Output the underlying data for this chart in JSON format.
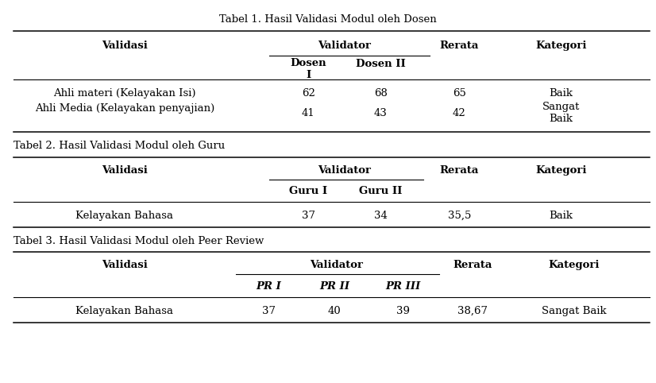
{
  "table1": {
    "title": "Tabel 1. Hasil Validasi Modul oleh Dosen",
    "rows": [
      [
        "Ahli materi (Kelayakan Isi)",
        "62",
        "68",
        "65",
        "Baik"
      ],
      [
        "Ahli Media (Kelayakan penyajian)",
        "41",
        "43",
        "42",
        "Sangat\nBaik"
      ]
    ]
  },
  "table2": {
    "title": "Tabel 2. Hasil Validasi Modul oleh Guru",
    "rows": [
      [
        "Kelayakan Bahasa",
        "37",
        "34",
        "35,5",
        "Baik"
      ]
    ]
  },
  "table3": {
    "title": "Tabel 3. Hasil Validasi Modul oleh Peer Review",
    "rows": [
      [
        "Kelayakan Bahasa",
        "37",
        "40",
        "39",
        "38,67",
        "Sangat Baik"
      ]
    ]
  },
  "font_family": "DejaVu Serif",
  "font_size": 9.5,
  "bg_color": "#ffffff",
  "text_color": "#000000"
}
